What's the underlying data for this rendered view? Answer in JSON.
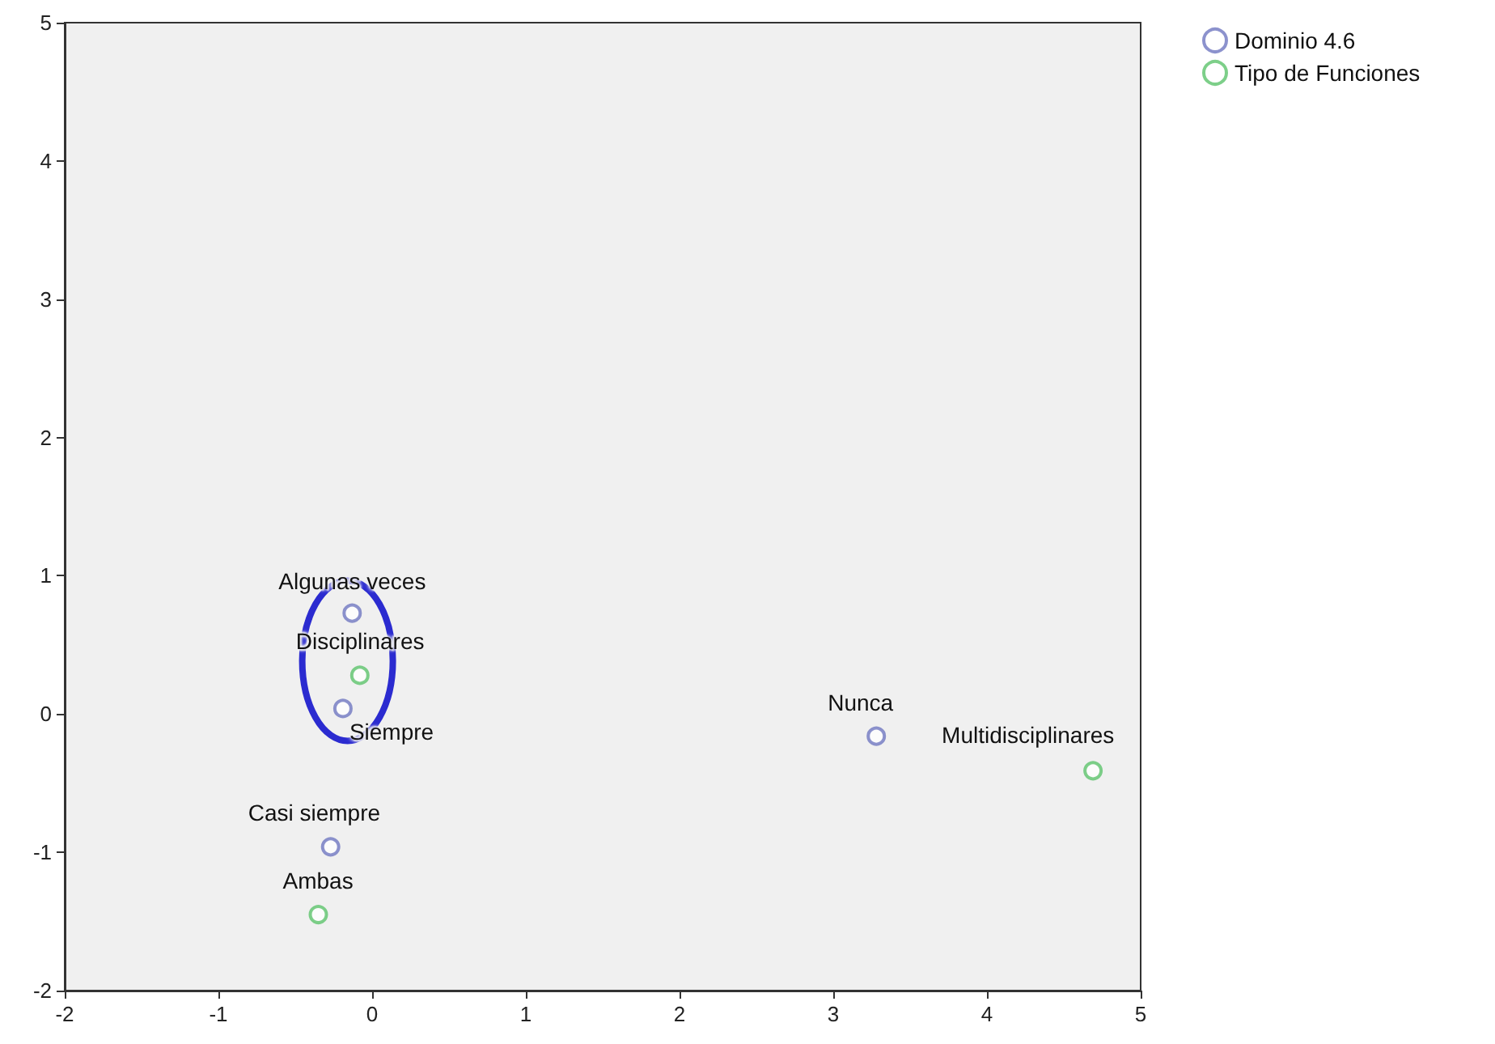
{
  "chart_data": {
    "type": "scatter",
    "marker": "circle",
    "grid": false,
    "legend": "top right",
    "xlim": [
      -2,
      5
    ],
    "xticks": [
      -2,
      -1,
      0,
      1,
      2,
      3,
      4,
      5
    ],
    "ylim": [
      -2,
      5
    ],
    "yticks": [
      -2,
      -1,
      0,
      1,
      2,
      3,
      4,
      5
    ],
    "series": [
      {
        "name": "Dominio 4.6",
        "color": "#6f77c0",
        "x": [
          -0.13,
          -0.19,
          -0.27,
          3.28
        ],
        "values": [
          0.73,
          0.04,
          -0.96,
          -0.16
        ]
      },
      {
        "name": "Tipo de Funciones",
        "color": "#5cc36b",
        "x": [
          -0.08,
          -0.35,
          4.69
        ],
        "values": [
          0.28,
          -1.45,
          -0.41
        ]
      }
    ],
    "annotations": [
      {
        "text": "Algunas veces",
        "x": -0.13,
        "y": 0.73
      },
      {
        "text": "Siempre",
        "x": -0.19,
        "y": 0.04
      },
      {
        "text": "Casi siempre",
        "x": -0.27,
        "y": -0.96
      },
      {
        "text": "Nunca",
        "x": 3.28,
        "y": -0.16
      },
      {
        "text": "Disciplinares",
        "x": -0.08,
        "y": 0.28
      },
      {
        "text": "Ambas",
        "x": -0.35,
        "y": -1.45
      },
      {
        "text": "Multidisciplinares",
        "x": 4.69,
        "y": -0.41
      }
    ]
  }
}
